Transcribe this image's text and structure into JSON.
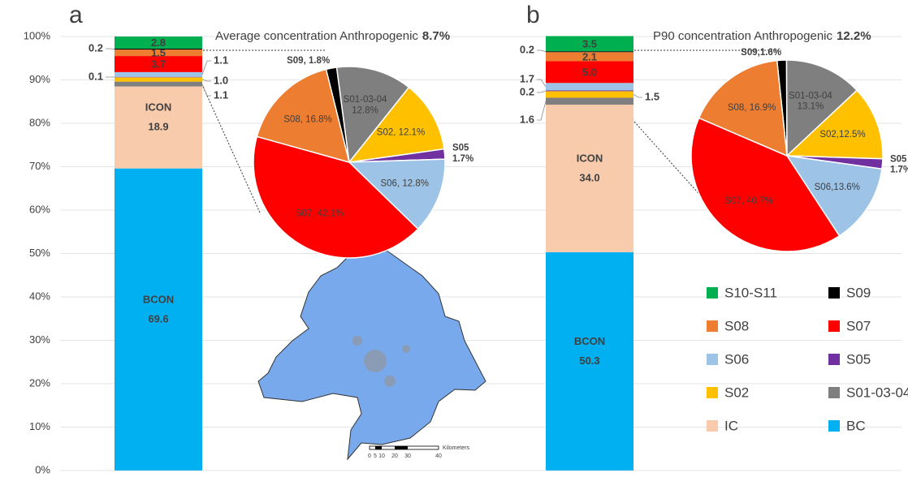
{
  "chart_data": [
    {
      "type": "bar",
      "stacked": true,
      "categories": [
        "a",
        "b"
      ],
      "ylim": [
        0,
        100
      ],
      "yticks": [
        {
          "value": 0,
          "label": "0%"
        },
        {
          "value": 10,
          "label": "10%"
        },
        {
          "value": 20,
          "label": "20%"
        },
        {
          "value": 30,
          "label": "30%"
        },
        {
          "value": 40,
          "label": "40%"
        },
        {
          "value": 50,
          "label": "50%"
        },
        {
          "value": 60,
          "label": "60%"
        },
        {
          "value": 70,
          "label": "70%"
        },
        {
          "value": 80,
          "label": "80%"
        },
        {
          "value": 90,
          "label": "90%"
        },
        {
          "value": 100,
          "label": "100%"
        }
      ],
      "grid": true,
      "series": [
        {
          "name": "BC",
          "label": "BCON",
          "color": "#00b0f0",
          "values": [
            69.6,
            50.3
          ],
          "value_labels": [
            "69.6",
            "50.3"
          ]
        },
        {
          "name": "IC",
          "label": "ICON",
          "color": "#f8cbad",
          "values": [
            18.9,
            34.0
          ],
          "value_labels": [
            "18.9",
            "34.0"
          ]
        },
        {
          "name": "S01-03-04",
          "color": "#7f7f7f",
          "values": [
            1.1,
            1.6
          ],
          "value_labels": [
            "1.1",
            "1.6"
          ]
        },
        {
          "name": "S02",
          "color": "#ffc000",
          "values": [
            1.0,
            1.5
          ],
          "value_labels": [
            "1.0",
            "1.5"
          ]
        },
        {
          "name": "S05",
          "color": "#7030a0",
          "values": [
            0.1,
            0.2
          ],
          "value_labels": [
            "0.1",
            "0.2"
          ]
        },
        {
          "name": "S06",
          "color": "#9dc3e6",
          "values": [
            1.1,
            1.7
          ],
          "value_labels": [
            "1.1",
            "1.7"
          ]
        },
        {
          "name": "S07",
          "color": "#ff0000",
          "values": [
            3.7,
            5.0
          ],
          "value_labels": [
            "3.7",
            "5.0"
          ]
        },
        {
          "name": "S08",
          "color": "#ed7d31",
          "values": [
            1.5,
            2.1
          ],
          "value_labels": [
            "1.5",
            "2.1"
          ]
        },
        {
          "name": "S09",
          "color": "#000000",
          "values": [
            0.2,
            0.2
          ],
          "value_labels": [
            "0.2",
            "0.2"
          ]
        },
        {
          "name": "S10-S11",
          "color": "#00b050",
          "values": [
            2.8,
            3.5
          ],
          "value_labels": [
            "2.8",
            "3.5"
          ]
        }
      ]
    },
    {
      "type": "pie",
      "title": "Average concentration Anthropogenic",
      "title_value": "8.7%",
      "colors": [
        "#000000",
        "#7f7f7f",
        "#ffc000",
        "#7030a0",
        "#9dc3e6",
        "#ff0000",
        "#ed7d31"
      ],
      "values": [
        1.8,
        12.8,
        12.1,
        1.7,
        12.8,
        42.1,
        16.8
      ],
      "value_labels": [
        "S09, 1.8%",
        "S01-03-04\n12.8%",
        "S02, 12.1%",
        "S05\n1.7%",
        "S06, 12.8%",
        "S07, 42.1%",
        "S08, 16.8%"
      ]
    },
    {
      "type": "pie",
      "title": "P90 concentration Anthropogenic",
      "title_value": "12.2%",
      "colors": [
        "#000000",
        "#7f7f7f",
        "#ffc000",
        "#7030a0",
        "#9dc3e6",
        "#ff0000",
        "#ed7d31"
      ],
      "values": [
        1.6,
        13.1,
        12.5,
        1.7,
        13.6,
        40.7,
        16.9
      ],
      "value_labels": [
        "S09,1.6%",
        "S01-03-04\n13.1%",
        "S02,12.5%",
        "S05\n1.7%",
        "S06,13.6%",
        "S07, 40.7%",
        "S08, 16.9%"
      ]
    }
  ],
  "map": {
    "scale_labels": [
      "0",
      "5",
      "10",
      "20",
      "30",
      "40"
    ],
    "unit": "Kilometers"
  }
}
